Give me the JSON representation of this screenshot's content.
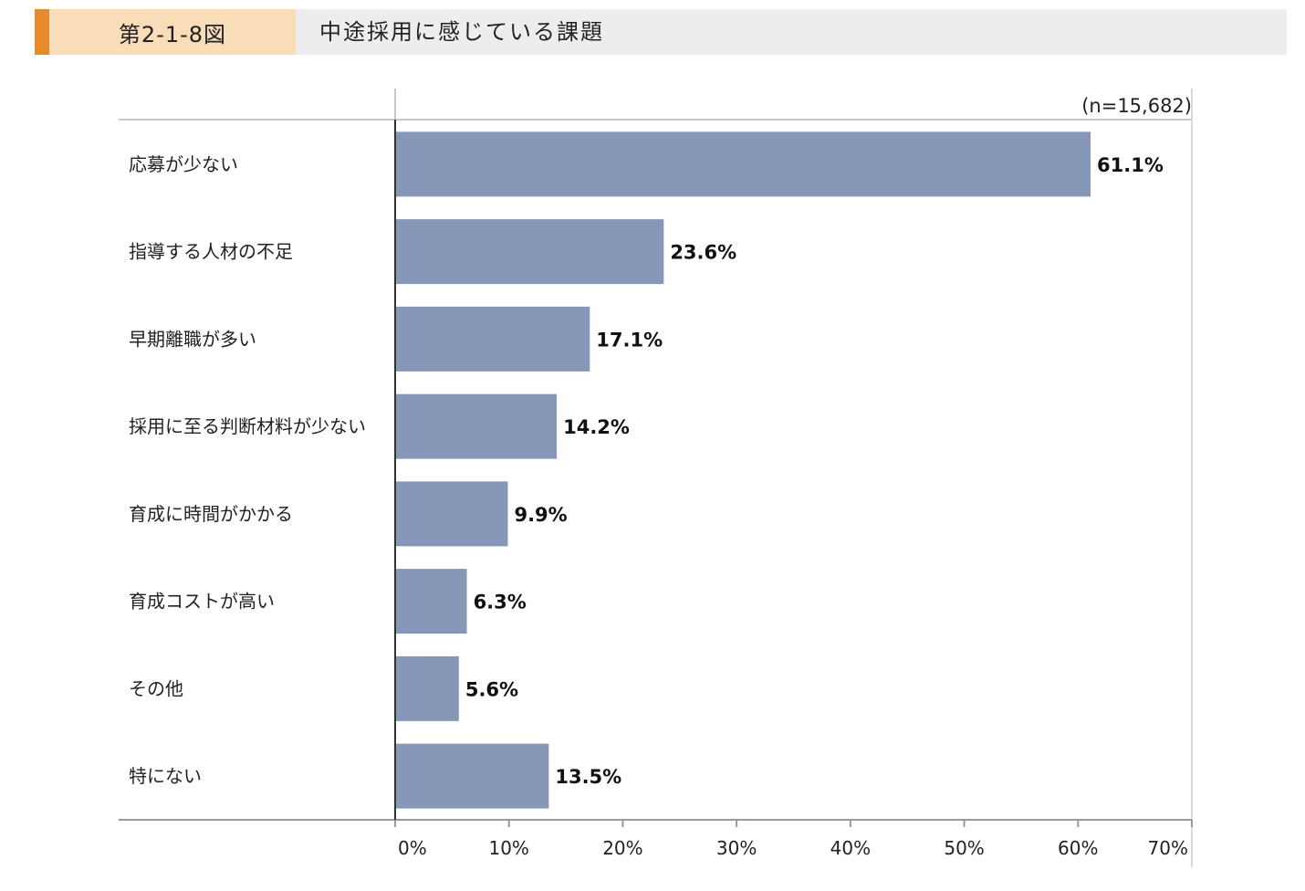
{
  "header": {
    "figure_number": "第2-1-8図",
    "figure_title": "中途採用に感じている課題"
  },
  "colors": {
    "accent": "#e8892a",
    "figure_number_bg": "#f9dcb8",
    "header_bg": "#ededed",
    "bar": "#8797b8"
  },
  "chart_data": {
    "type": "bar",
    "orientation": "horizontal",
    "title": "中途採用に感じている課題",
    "sample_note": "(n=15,682)",
    "categories": [
      "応募が少ない",
      "指導する人材の不足",
      "早期離職が多い",
      "採用に至る判断材料が少ない",
      "育成に時間がかかる",
      "育成コストが高い",
      "その他",
      "特にない"
    ],
    "values": [
      61.1,
      23.6,
      17.1,
      14.2,
      9.9,
      6.3,
      5.6,
      13.5
    ],
    "value_labels": [
      "61.1%",
      "23.6%",
      "17.1%",
      "14.2%",
      "9.9%",
      "6.3%",
      "5.6%",
      "13.5%"
    ],
    "xlim": [
      0,
      70
    ],
    "xticks": [
      0,
      10,
      20,
      30,
      40,
      50,
      60,
      70
    ],
    "xtick_labels": [
      "0%",
      "10%",
      "20%",
      "30%",
      "40%",
      "50%",
      "60%",
      "70%"
    ],
    "grid": false,
    "legend": "none"
  }
}
